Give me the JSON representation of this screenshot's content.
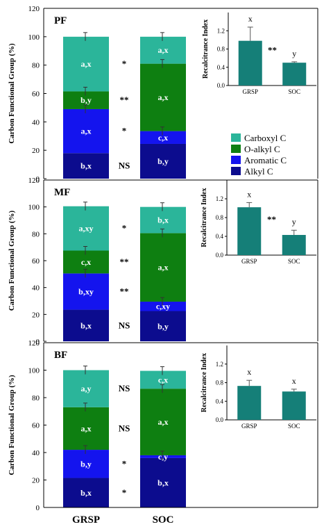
{
  "colors": {
    "Carboxyl C": "#2bb59a",
    "O-alkyl C": "#0e7f11",
    "Aromatic C": "#1414ee",
    "Alkyl C": "#0c0c8e",
    "inset_bar": "#157f78"
  },
  "legend": [
    "Carboxyl C",
    "O-alkyl C",
    "Aromatic C",
    "Alkyl C"
  ],
  "chart_data": [
    {
      "type": "bar",
      "stacked": true,
      "panel": "PF",
      "ylabel": "Carbon Functional Group (%)",
      "ylim": [
        0,
        120
      ],
      "yticks": [
        "0",
        "20",
        "40",
        "60",
        "80",
        "100",
        "120"
      ],
      "categories": [
        "GRSP",
        "SOC"
      ],
      "series": [
        {
          "name": "Alkyl C",
          "values": [
            18,
            24.5
          ],
          "labels": [
            "b,x",
            "b,y"
          ]
        },
        {
          "name": "Aromatic C",
          "values": [
            31,
            9
          ],
          "labels": [
            "a,x",
            "c,x"
          ]
        },
        {
          "name": "O-alkyl C",
          "values": [
            12.5,
            47.5
          ],
          "labels": [
            "b,y",
            "a,x"
          ]
        },
        {
          "name": "Carboxyl C",
          "values": [
            38.5,
            19
          ],
          "labels": [
            "a,x",
            "a,x"
          ]
        }
      ],
      "significance": [
        "NS",
        "*",
        "**",
        "*"
      ],
      "inset": {
        "ylabel": "Recalcitrance Index",
        "ylim": [
          0,
          1.6
        ],
        "yticks": [
          "0.0",
          "0.4",
          "0.8",
          "1.2"
        ],
        "categories": [
          "GRSP",
          "SOC"
        ],
        "values": [
          0.98,
          0.5
        ],
        "errors": [
          0.3,
          0.02
        ],
        "letters": [
          "x",
          "y"
        ],
        "significance": "**"
      }
    },
    {
      "type": "bar",
      "stacked": true,
      "panel": "MF",
      "ylabel": "Carbon Functional Group (%)",
      "ylim": [
        0,
        120
      ],
      "yticks": [
        "0",
        "20",
        "40",
        "60",
        "80",
        "100",
        "120"
      ],
      "categories": [
        "GRSP",
        "SOC"
      ],
      "series": [
        {
          "name": "Alkyl C",
          "values": [
            23.5,
            22.5
          ],
          "labels": [
            "b,x",
            "b,y"
          ]
        },
        {
          "name": "Aromatic C",
          "values": [
            27,
            7
          ],
          "labels": [
            "b,xy",
            "c,xy"
          ]
        },
        {
          "name": "O-alkyl C",
          "values": [
            17,
            51
          ],
          "labels": [
            "c,x",
            "a,x"
          ]
        },
        {
          "name": "Carboxyl C",
          "values": [
            33,
            19.5
          ],
          "labels": [
            "a,xy",
            "b,x"
          ]
        }
      ],
      "significance": [
        "NS",
        "**",
        "**",
        "*"
      ],
      "inset": {
        "ylabel": "Recalcitrance Index",
        "ylim": [
          0,
          1.6
        ],
        "yticks": [
          "0.0",
          "0.4",
          "0.8",
          "1.2"
        ],
        "categories": [
          "GRSP",
          "SOC"
        ],
        "values": [
          1.02,
          0.43
        ],
        "errors": [
          0.1,
          0.1
        ],
        "letters": [
          "x",
          "y"
        ],
        "significance": "**"
      }
    },
    {
      "type": "bar",
      "stacked": true,
      "panel": "BF",
      "ylabel": "Carbon Functional Group (%)",
      "ylim": [
        0,
        120
      ],
      "yticks": [
        "0",
        "20",
        "40",
        "60",
        "80",
        "100",
        "120"
      ],
      "categories": [
        "GRSP",
        "SOC"
      ],
      "series": [
        {
          "name": "Alkyl C",
          "values": [
            21.5,
            36
          ],
          "labels": [
            "b,x",
            "b,x"
          ]
        },
        {
          "name": "Aromatic C",
          "values": [
            20.5,
            2
          ],
          "labels": [
            "b,y",
            "c,y"
          ]
        },
        {
          "name": "O-alkyl C",
          "values": [
            31,
            48.5
          ],
          "labels": [
            "a,x",
            "a,x"
          ]
        },
        {
          "name": "Carboxyl C",
          "values": [
            27,
            13
          ],
          "labels": [
            "a,y",
            "c,x"
          ]
        }
      ],
      "significance": [
        "*",
        "*",
        "NS",
        "NS"
      ],
      "inset": {
        "ylabel": "Recalcitrance Index",
        "ylim": [
          0,
          1.6
        ],
        "yticks": [
          "0.0",
          "0.4",
          "0.8",
          "1.2"
        ],
        "categories": [
          "GRSP",
          "SOC"
        ],
        "values": [
          0.73,
          0.61
        ],
        "errors": [
          0.12,
          0.05
        ],
        "letters": [
          "x",
          "x"
        ],
        "significance": ""
      }
    }
  ]
}
